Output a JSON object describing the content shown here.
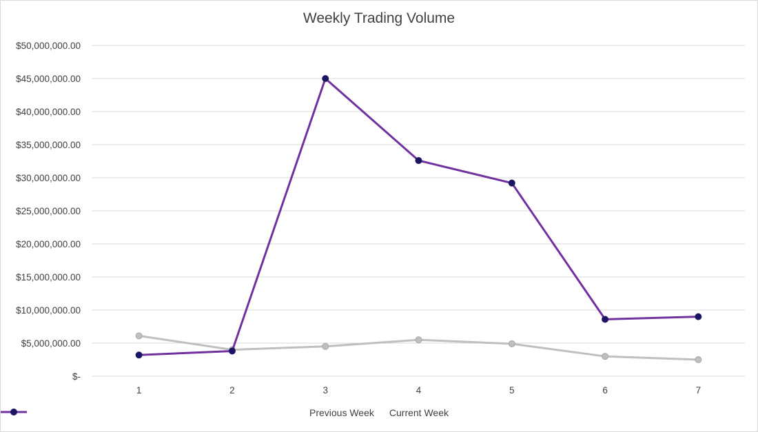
{
  "chart_data": {
    "type": "line",
    "title": "Weekly Trading Volume",
    "xlabel": "",
    "ylabel": "",
    "categories": [
      "1",
      "2",
      "3",
      "4",
      "5",
      "6",
      "7"
    ],
    "y_tick_labels": [
      "$-",
      "$5,000,000.00",
      "$10,000,000.00",
      "$15,000,000.00",
      "$20,000,000.00",
      "$25,000,000.00",
      "$30,000,000.00",
      "$35,000,000.00",
      "$40,000,000.00",
      "$45,000,000.00",
      "$50,000,000.00"
    ],
    "ylim": [
      0,
      50000000
    ],
    "grid": true,
    "legend_position": "bottom",
    "series": [
      {
        "name": "Previous Week",
        "color": "#bfbfbf",
        "marker_edge": "#a6a6a6",
        "values": [
          6100000,
          4000000,
          4500000,
          5500000,
          4900000,
          3000000,
          2500000
        ]
      },
      {
        "name": "Current Week",
        "color": "#7030a0",
        "marker_edge": "#1f1f5f",
        "marker_fill": "#1b1464",
        "values": [
          3200000,
          3800000,
          45000000,
          32600000,
          29200000,
          8600000,
          9000000
        ]
      }
    ]
  }
}
